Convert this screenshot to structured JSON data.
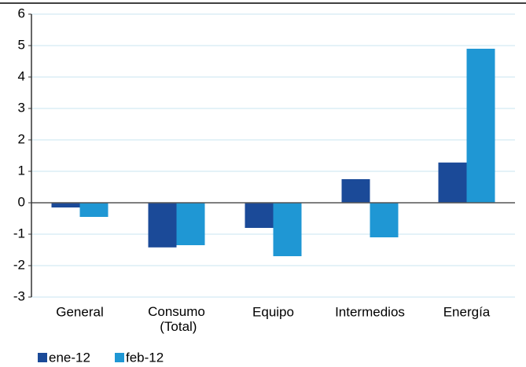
{
  "chart_data": {
    "type": "bar",
    "categories": [
      "General",
      "Consumo (Total)",
      "Equipo",
      "Intermedios",
      "Energía"
    ],
    "series": [
      {
        "name": "ene-12",
        "color": "#1b4a98",
        "values": [
          -0.15,
          -1.42,
          -0.8,
          0.75,
          1.28
        ]
      },
      {
        "name": "feb-12",
        "color": "#1f97d4",
        "values": [
          -0.45,
          -1.35,
          -1.7,
          -1.1,
          4.9
        ]
      }
    ],
    "ylim": [
      -3,
      6
    ],
    "yticks": [
      -3,
      -2,
      -1,
      0,
      1,
      2,
      3,
      4,
      5,
      6
    ],
    "grid": true,
    "legend": "bottom"
  }
}
